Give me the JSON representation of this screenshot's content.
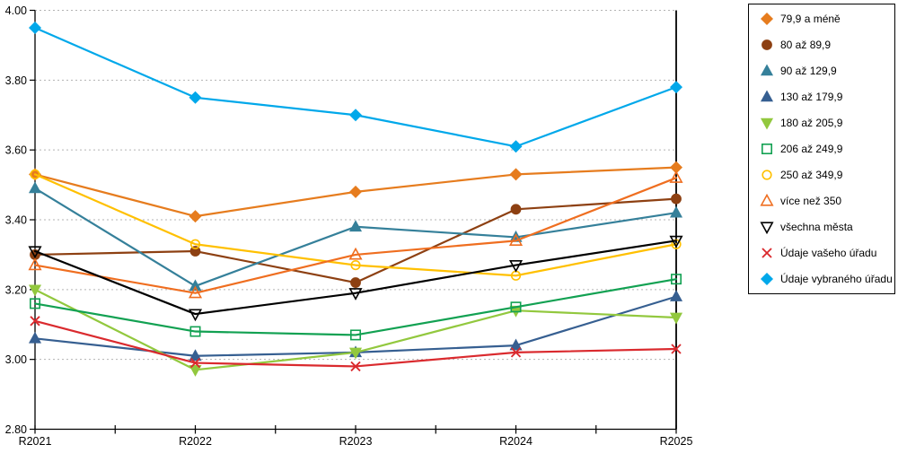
{
  "chart_data": {
    "type": "line",
    "title": "",
    "xlabel": "",
    "ylabel": "",
    "ylim": [
      2.8,
      4.0
    ],
    "y_tick_step": 0.2,
    "y_ticks": [
      "4.00",
      "3.80",
      "3.60",
      "3.40",
      "3.20",
      "3.00",
      "2.80"
    ],
    "categories": [
      "R2021",
      "R2022",
      "R2023",
      "R2024",
      "R2025"
    ],
    "grid": "horizontal-dashed",
    "legend_position": "right",
    "series": [
      {
        "name": "79,9 a méně",
        "marker": "diamond",
        "fill": "solid",
        "color": "#e67c1e",
        "values": [
          3.53,
          3.41,
          3.48,
          3.53,
          3.55
        ]
      },
      {
        "name": "80 až 89,9",
        "marker": "circle",
        "fill": "solid",
        "color": "#8d4012",
        "values": [
          3.3,
          3.31,
          3.22,
          3.43,
          3.46
        ]
      },
      {
        "name": "90 až 129,9",
        "marker": "triangle-up",
        "fill": "solid",
        "color": "#35809a",
        "values": [
          3.49,
          3.21,
          3.38,
          3.35,
          3.42
        ]
      },
      {
        "name": "130 až 179,9",
        "marker": "triangle-up",
        "fill": "solid",
        "color": "#365f91",
        "values": [
          3.06,
          3.01,
          3.02,
          3.04,
          3.18
        ]
      },
      {
        "name": "180 až 205,9",
        "marker": "triangle-down",
        "fill": "solid",
        "color": "#92c83e",
        "values": [
          3.2,
          2.97,
          3.02,
          3.14,
          3.12
        ]
      },
      {
        "name": "206 až 249,9",
        "marker": "square",
        "fill": "open",
        "color": "#12a152",
        "values": [
          3.16,
          3.08,
          3.07,
          3.15,
          3.23
        ]
      },
      {
        "name": "250 až 349,9",
        "marker": "circle",
        "fill": "open",
        "color": "#ffc000",
        "values": [
          3.53,
          3.33,
          3.27,
          3.24,
          3.33
        ]
      },
      {
        "name": "více než 350",
        "marker": "triangle-up",
        "fill": "open",
        "color": "#ef6e20",
        "values": [
          3.27,
          3.19,
          3.3,
          3.34,
          3.52
        ]
      },
      {
        "name": "všechna města",
        "marker": "triangle-down",
        "fill": "open",
        "color": "#000000",
        "values": [
          3.31,
          3.13,
          3.19,
          3.27,
          3.34
        ]
      },
      {
        "name": "Údaje vašeho úřadu",
        "marker": "x",
        "fill": "open",
        "color": "#da2a2e",
        "values": [
          3.11,
          2.99,
          2.98,
          3.02,
          3.03
        ]
      },
      {
        "name": "Údaje vybraného úřadu",
        "marker": "diamond",
        "fill": "solid",
        "color": "#00a8ea",
        "values": [
          3.95,
          3.75,
          3.7,
          3.61,
          3.78
        ]
      }
    ]
  },
  "colors": {
    "background": "#ffffff",
    "gridline": "#b3b3b3",
    "axis": "#000000",
    "legend_border": "#000000",
    "text": "#000000"
  }
}
